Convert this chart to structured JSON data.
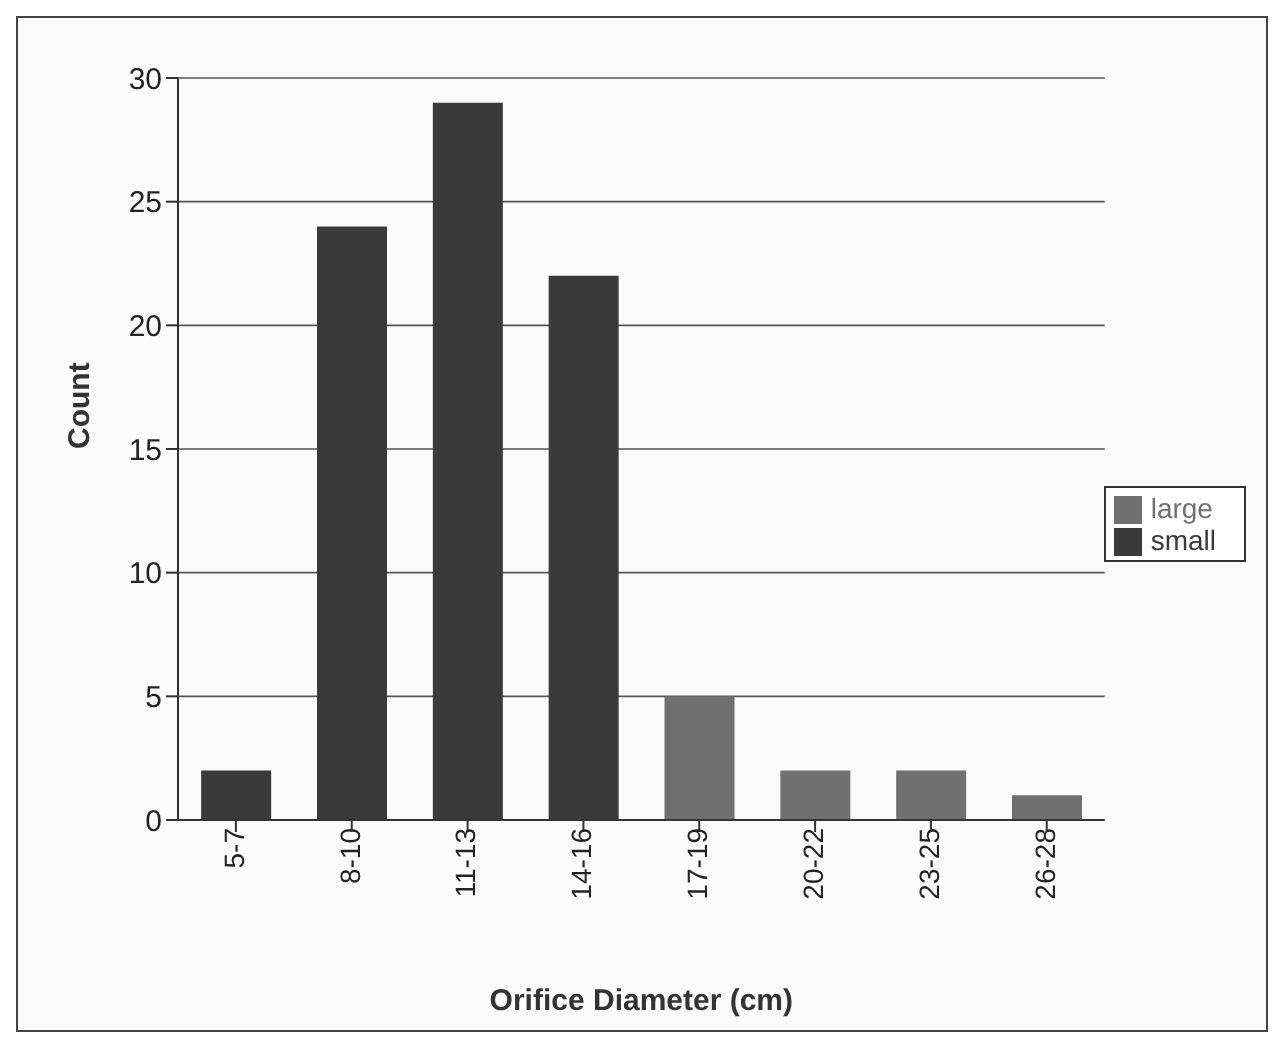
{
  "chart_data": {
    "type": "bar",
    "xlabel": "Orifice Diameter (cm)",
    "ylabel": "Count",
    "categories": [
      "5-7",
      "8-10",
      "11-13",
      "14-16",
      "17-19",
      "20-22",
      "23-25",
      "26-28"
    ],
    "series": [
      {
        "name": "small",
        "color": "#3a3a3a",
        "values": [
          2,
          24,
          29,
          22,
          null,
          null,
          null,
          null
        ]
      },
      {
        "name": "large",
        "color": "#707070",
        "values": [
          null,
          null,
          null,
          null,
          5,
          2,
          2,
          1
        ]
      }
    ],
    "ylim": [
      0,
      30
    ],
    "yticks": [
      0,
      5,
      10,
      15,
      20,
      25,
      30
    ],
    "grid": "y",
    "legend": "right"
  }
}
